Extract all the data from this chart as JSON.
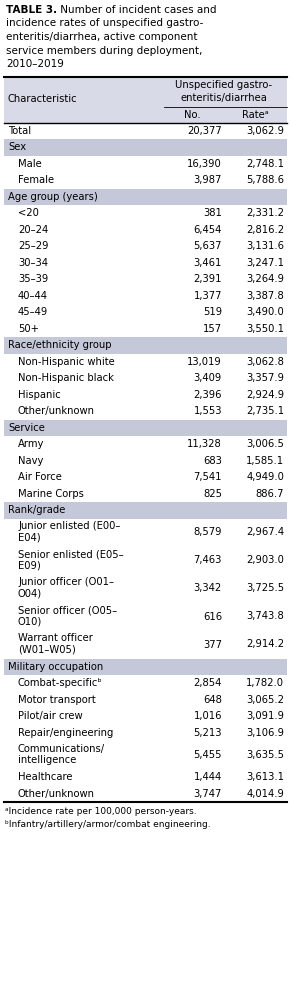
{
  "title_lines": [
    [
      {
        "text": "TABLE 3.",
        "bold": true
      },
      {
        "text": " Number of incident cases and",
        "bold": false
      }
    ],
    [
      {
        "text": "incidence rates of unspecified gastro-",
        "bold": false
      }
    ],
    [
      {
        "text": "enteritis/diarrhea, active component",
        "bold": false
      }
    ],
    [
      {
        "text": "service members during deployment,",
        "bold": false
      }
    ],
    [
      {
        "text": "2010–2019",
        "bold": false
      }
    ]
  ],
  "col_header_top": "Unspecified gastro-\nenteritis/diarrhea",
  "col_header_no": "No.",
  "col_header_rate": "Rateᵃ",
  "col_char_label": "Characteristic",
  "header_bg": "#d8dae8",
  "section_bg": "#c5c8d8",
  "footnote_a": "ᵃIncidence rate per 100,000 person-years.",
  "footnote_b": "ᵇInfantry/artillery/armor/combat engineering.",
  "rows": [
    {
      "label": "Total",
      "no": "20,377",
      "rate": "3,062.9",
      "section": false,
      "indent": false,
      "multiline": false
    },
    {
      "label": "Sex",
      "no": "",
      "rate": "",
      "section": true,
      "indent": false,
      "multiline": false
    },
    {
      "label": "Male",
      "no": "16,390",
      "rate": "2,748.1",
      "section": false,
      "indent": true,
      "multiline": false
    },
    {
      "label": "Female",
      "no": "3,987",
      "rate": "5,788.6",
      "section": false,
      "indent": true,
      "multiline": false
    },
    {
      "label": "Age group (years)",
      "no": "",
      "rate": "",
      "section": true,
      "indent": false,
      "multiline": false
    },
    {
      "label": "<20",
      "no": "381",
      "rate": "2,331.2",
      "section": false,
      "indent": true,
      "multiline": false
    },
    {
      "label": "20–24",
      "no": "6,454",
      "rate": "2,816.2",
      "section": false,
      "indent": true,
      "multiline": false
    },
    {
      "label": "25–29",
      "no": "5,637",
      "rate": "3,131.6",
      "section": false,
      "indent": true,
      "multiline": false
    },
    {
      "label": "30–34",
      "no": "3,461",
      "rate": "3,247.1",
      "section": false,
      "indent": true,
      "multiline": false
    },
    {
      "label": "35–39",
      "no": "2,391",
      "rate": "3,264.9",
      "section": false,
      "indent": true,
      "multiline": false
    },
    {
      "label": "40–44",
      "no": "1,377",
      "rate": "3,387.8",
      "section": false,
      "indent": true,
      "multiline": false
    },
    {
      "label": "45–49",
      "no": "519",
      "rate": "3,490.0",
      "section": false,
      "indent": true,
      "multiline": false
    },
    {
      "label": "50+",
      "no": "157",
      "rate": "3,550.1",
      "section": false,
      "indent": true,
      "multiline": false
    },
    {
      "label": "Race/ethnicity group",
      "no": "",
      "rate": "",
      "section": true,
      "indent": false,
      "multiline": false
    },
    {
      "label": "Non-Hispanic white",
      "no": "13,019",
      "rate": "3,062.8",
      "section": false,
      "indent": true,
      "multiline": false
    },
    {
      "label": "Non-Hispanic black",
      "no": "3,409",
      "rate": "3,357.9",
      "section": false,
      "indent": true,
      "multiline": false
    },
    {
      "label": "Hispanic",
      "no": "2,396",
      "rate": "2,924.9",
      "section": false,
      "indent": true,
      "multiline": false
    },
    {
      "label": "Other/unknown",
      "no": "1,553",
      "rate": "2,735.1",
      "section": false,
      "indent": true,
      "multiline": false
    },
    {
      "label": "Service",
      "no": "",
      "rate": "",
      "section": true,
      "indent": false,
      "multiline": false
    },
    {
      "label": "Army",
      "no": "11,328",
      "rate": "3,006.5",
      "section": false,
      "indent": true,
      "multiline": false
    },
    {
      "label": "Navy",
      "no": "683",
      "rate": "1,585.1",
      "section": false,
      "indent": true,
      "multiline": false
    },
    {
      "label": "Air Force",
      "no": "7,541",
      "rate": "4,949.0",
      "section": false,
      "indent": true,
      "multiline": false
    },
    {
      "label": "Marine Corps",
      "no": "825",
      "rate": "886.7",
      "section": false,
      "indent": true,
      "multiline": false
    },
    {
      "label": "Rank/grade",
      "no": "",
      "rate": "",
      "section": true,
      "indent": false,
      "multiline": false
    },
    {
      "label": "Junior enlisted (E00–\nE04)",
      "no": "8,579",
      "rate": "2,967.4",
      "section": false,
      "indent": true,
      "multiline": true
    },
    {
      "label": "Senior enlisted (E05–\nE09)",
      "no": "7,463",
      "rate": "2,903.0",
      "section": false,
      "indent": true,
      "multiline": true
    },
    {
      "label": "Junior officer (O01–\nO04)",
      "no": "3,342",
      "rate": "3,725.5",
      "section": false,
      "indent": true,
      "multiline": true
    },
    {
      "label": "Senior officer (O05–\nO10)",
      "no": "616",
      "rate": "3,743.8",
      "section": false,
      "indent": true,
      "multiline": true
    },
    {
      "label": "Warrant officer\n(W01–W05)",
      "no": "377",
      "rate": "2,914.2",
      "section": false,
      "indent": true,
      "multiline": true
    },
    {
      "label": "Military occupation",
      "no": "",
      "rate": "",
      "section": true,
      "indent": false,
      "multiline": false
    },
    {
      "label": "Combat-specificᵇ",
      "no": "2,854",
      "rate": "1,782.0",
      "section": false,
      "indent": true,
      "multiline": false
    },
    {
      "label": "Motor transport",
      "no": "648",
      "rate": "3,065.2",
      "section": false,
      "indent": true,
      "multiline": false
    },
    {
      "label": "Pilot/air crew",
      "no": "1,016",
      "rate": "3,091.9",
      "section": false,
      "indent": true,
      "multiline": false
    },
    {
      "label": "Repair/engineering",
      "no": "5,213",
      "rate": "3,106.9",
      "section": false,
      "indent": true,
      "multiline": false
    },
    {
      "label": "Communications/\nintelligence",
      "no": "5,455",
      "rate": "3,635.5",
      "section": false,
      "indent": true,
      "multiline": true
    },
    {
      "label": "Healthcare",
      "no": "1,444",
      "rate": "3,613.1",
      "section": false,
      "indent": true,
      "multiline": false
    },
    {
      "label": "Other/unknown",
      "no": "3,747",
      "rate": "4,014.9",
      "section": false,
      "indent": true,
      "multiline": false
    }
  ]
}
